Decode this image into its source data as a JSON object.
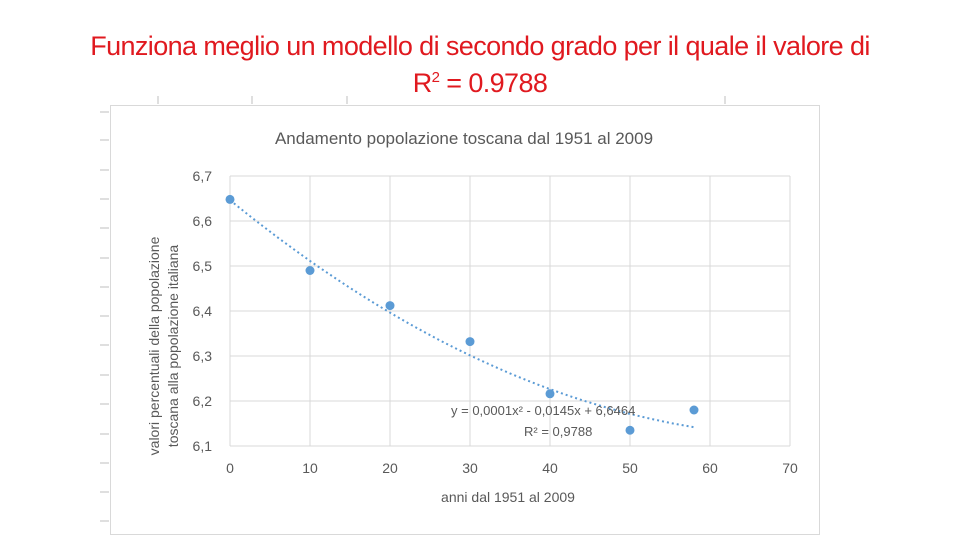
{
  "slide": {
    "title_line1": "Funziona meglio un modello di secondo grado per il quale il valore di",
    "title_line2_base": "R",
    "title_line2_sup": "2",
    "title_line2_rest": " = 0.9788",
    "title_color": "#e0191f"
  },
  "chart_data": {
    "type": "scatter",
    "title": "Andamento popolazione toscana dal 1951 al 2009",
    "xlabel": "anni dal 1951 al 2009",
    "ylabel_line1": "valori percentuali della popolazione",
    "ylabel_line2": "toscana alla popolazione italiana",
    "xlim": [
      0,
      70
    ],
    "ylim": [
      6.1,
      6.7
    ],
    "x_ticks": [
      0,
      10,
      20,
      30,
      40,
      50,
      60,
      70
    ],
    "x_tick_labels": [
      "0",
      "10",
      "20",
      "30",
      "40",
      "50",
      "60",
      "70"
    ],
    "y_ticks": [
      6.1,
      6.2,
      6.3,
      6.4,
      6.5,
      6.6,
      6.7
    ],
    "y_tick_labels": [
      "6,1",
      "6,2",
      "6,3",
      "6,4",
      "6,5",
      "6,6",
      "6,7"
    ],
    "grid": true,
    "series": [
      {
        "x": [
          0,
          10,
          20,
          30,
          40,
          50,
          58
        ],
        "y": [
          6.648,
          6.49,
          6.412,
          6.332,
          6.216,
          6.135,
          6.18
        ],
        "color": "#5b9bd5"
      }
    ],
    "trendline": {
      "type": "polynomial-2",
      "a": 0.0001,
      "b": -0.0145,
      "c": 6.6464,
      "x_range": [
        0,
        58
      ],
      "color": "#5b9bd5",
      "equation_label": "y = 0,0001x² - 0,0145x + 6,6464",
      "r2_label": "R² = 0,9788"
    }
  }
}
